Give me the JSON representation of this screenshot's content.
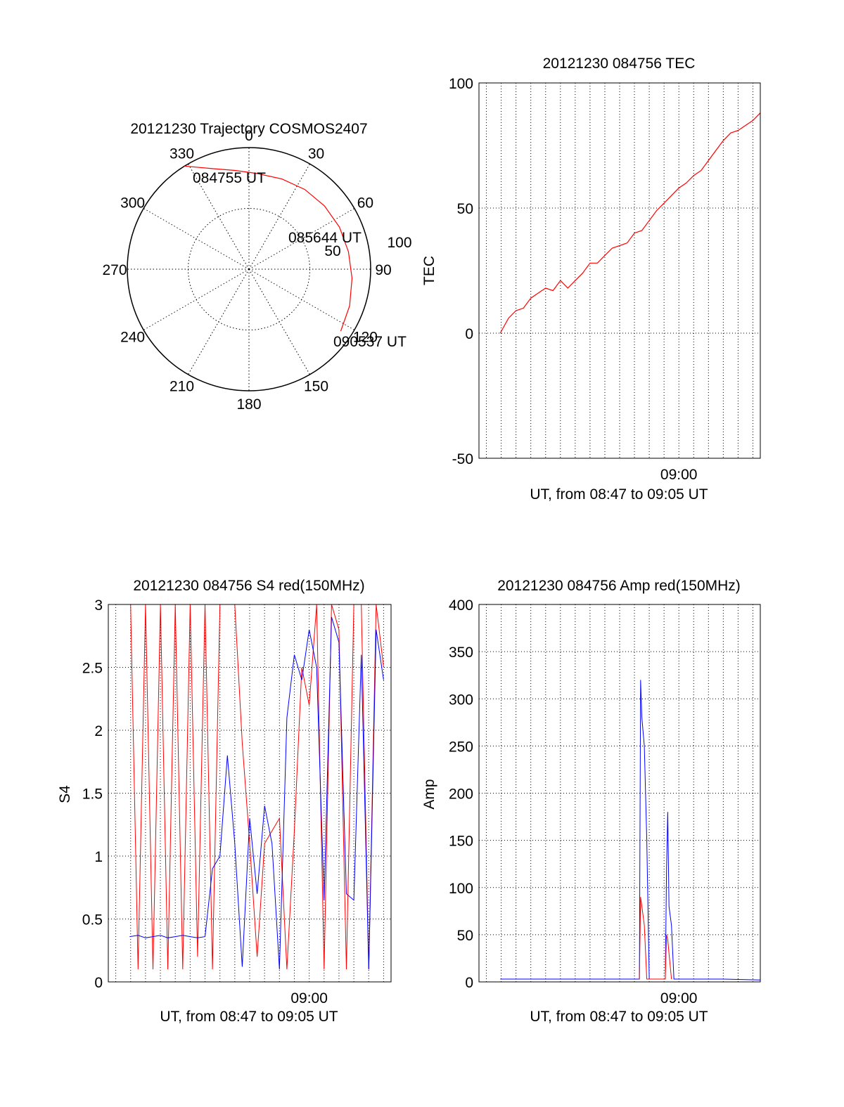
{
  "chart_data": [
    {
      "type": "polar",
      "title": "20121230 Trajectory COSMOS2407",
      "azimuth_ticks": [
        0,
        30,
        60,
        90,
        120,
        150,
        180,
        210,
        240,
        270,
        300,
        330
      ],
      "azimuth_labels": [
        "0",
        "30",
        "60",
        "90",
        "120",
        "150",
        "180",
        "210",
        "240",
        "270",
        "300",
        "330"
      ],
      "radial_ticks": [
        "50",
        "100"
      ],
      "radial_range": [
        0,
        100
      ],
      "grid": true,
      "trajectory": {
        "color": "#ff0000",
        "points": [
          {
            "az": 328,
            "r": 100
          },
          {
            "az": 340,
            "r": 88
          },
          {
            "az": 352,
            "r": 82
          },
          {
            "az": 5,
            "r": 79
          },
          {
            "az": 20,
            "r": 79
          },
          {
            "az": 35,
            "r": 80
          },
          {
            "az": 50,
            "r": 81
          },
          {
            "az": 65,
            "r": 82
          },
          {
            "az": 80,
            "r": 83
          },
          {
            "az": 95,
            "r": 85
          },
          {
            "az": 110,
            "r": 88
          },
          {
            "az": 124,
            "r": 91
          }
        ]
      },
      "annotations": [
        {
          "text": "084755 UT",
          "az": 328,
          "r": 100
        },
        {
          "text": "085644 UT",
          "az": 62,
          "r": 79
        },
        {
          "text": "090537 UT",
          "az": 124,
          "r": 91
        }
      ]
    },
    {
      "type": "line",
      "title": "20121230 084756 TEC",
      "xlabel": "UT, from 08:47 to 09:05 UT",
      "ylabel": "TEC",
      "xlim": [
        "08:46:30",
        "09:05:30"
      ],
      "ylim": [
        -50,
        100
      ],
      "yticks": [
        -50,
        0,
        50,
        100
      ],
      "xticks": [
        {
          "value": "09:00",
          "label": "09:00"
        }
      ],
      "grid": true,
      "series": [
        {
          "color": "#ff0000",
          "x": [
            "08:47:56",
            "08:48:30",
            "08:49:00",
            "08:49:30",
            "08:50:00",
            "08:50:30",
            "08:51:00",
            "08:51:30",
            "08:52:00",
            "08:52:30",
            "08:53:00",
            "08:53:30",
            "08:54:00",
            "08:54:30",
            "08:55:00",
            "08:55:30",
            "08:56:00",
            "08:56:30",
            "08:57:00",
            "08:57:30",
            "08:58:00",
            "08:58:30",
            "08:59:00",
            "08:59:30",
            "09:00:00",
            "09:00:30",
            "09:01:00",
            "09:01:30",
            "09:02:00",
            "09:02:30",
            "09:03:00",
            "09:03:30",
            "09:04:00",
            "09:04:30",
            "09:05:00",
            "09:05:30"
          ],
          "values": [
            0,
            6,
            9,
            10,
            14,
            16,
            18,
            17,
            21,
            18,
            21,
            24,
            28,
            28,
            31,
            34,
            35,
            36,
            40,
            41,
            45,
            49,
            52,
            55,
            58,
            60,
            63,
            65,
            69,
            73,
            77,
            80,
            81,
            83,
            85,
            88
          ]
        }
      ]
    },
    {
      "type": "line",
      "title": "20121230 084756 S4 red(150MHz)",
      "xlabel": "UT, from 08:47 to 09:05 UT",
      "ylabel": "S4",
      "xlim": [
        "08:46:30",
        "09:05:30"
      ],
      "ylim": [
        0,
        3
      ],
      "yticks": [
        0,
        0.5,
        1,
        1.5,
        2,
        2.5,
        3
      ],
      "ytick_labels": [
        "0",
        "0.5",
        "1",
        "1.5",
        "2",
        "2.5",
        "3"
      ],
      "xticks": [
        {
          "value": "09:00",
          "label": "09:00"
        }
      ],
      "grid": true,
      "series": [
        {
          "color": "#ff0000",
          "x": [
            "08:48:00",
            "08:48:30",
            "08:49:00",
            "08:49:30",
            "08:50:00",
            "08:50:30",
            "08:51:00",
            "08:51:30",
            "08:52:00",
            "08:52:30",
            "08:53:00",
            "08:53:30",
            "08:54:00",
            "08:54:30",
            "08:55:00",
            "08:55:30",
            "08:56:00",
            "08:56:30",
            "08:57:00",
            "08:57:30",
            "08:58:00",
            "08:58:30",
            "08:59:00",
            "08:59:30",
            "09:00:00",
            "09:00:30",
            "09:01:00",
            "09:01:30",
            "09:02:00",
            "09:02:30",
            "09:03:00",
            "09:03:30",
            "09:04:00",
            "09:04:30",
            "09:05:00"
          ],
          "values": [
            3,
            0.1,
            3,
            0.1,
            3,
            0.1,
            3,
            0.1,
            3,
            0.2,
            3,
            0.1,
            3,
            3,
            3,
            1.9,
            1.1,
            0.2,
            1.1,
            1.2,
            1.3,
            0.1,
            1.2,
            2.5,
            2.2,
            3,
            0.1,
            3,
            2.8,
            0.1,
            3,
            3,
            0.1,
            3,
            2.5
          ]
        },
        {
          "color": "#0000ff",
          "x": [
            "08:47:56",
            "08:48:30",
            "08:49:00",
            "08:49:30",
            "08:50:00",
            "08:50:30",
            "08:51:00",
            "08:51:30",
            "08:52:00",
            "08:52:30",
            "08:53:00",
            "08:53:30",
            "08:54:00",
            "08:54:30",
            "08:55:00",
            "08:55:30",
            "08:56:00",
            "08:56:30",
            "08:57:00",
            "08:57:30",
            "08:58:00",
            "08:58:30",
            "08:59:00",
            "08:59:30",
            "09:00:00",
            "09:00:30",
            "09:01:00",
            "09:01:30",
            "09:02:00",
            "09:02:30",
            "09:03:00",
            "09:03:30",
            "09:04:00",
            "09:04:30",
            "09:05:00"
          ],
          "values": [
            0.36,
            0.37,
            0.35,
            0.36,
            0.37,
            0.35,
            0.36,
            0.37,
            0.36,
            0.35,
            0.36,
            0.9,
            1.0,
            1.8,
            1.1,
            0.12,
            1.3,
            0.7,
            1.4,
            1.1,
            0.1,
            2.1,
            2.6,
            2.4,
            2.8,
            2.5,
            0.65,
            2.9,
            2.7,
            0.7,
            0.65,
            2.6,
            0.1,
            2.8,
            2.4
          ]
        }
      ]
    },
    {
      "type": "line",
      "title": "20121230 084756 Amp red(150MHz)",
      "xlabel": "UT, from 08:47 to 09:05 UT",
      "ylabel": "Amp",
      "xlim": [
        "08:46:30",
        "09:05:30"
      ],
      "ylim": [
        0,
        400
      ],
      "yticks": [
        0,
        50,
        100,
        150,
        200,
        250,
        300,
        350,
        400
      ],
      "xticks": [
        {
          "value": "09:00",
          "label": "09:00"
        }
      ],
      "grid": true,
      "series": [
        {
          "color": "#0000ff",
          "x": [
            "08:47:56",
            "08:50:00",
            "08:53:00",
            "08:56:00",
            "08:57:00",
            "08:57:20",
            "08:57:25",
            "08:57:30",
            "08:57:40",
            "08:57:50",
            "08:58:00",
            "08:58:30",
            "08:59:00",
            "08:59:05",
            "08:59:10",
            "08:59:15",
            "08:59:20",
            "08:59:30",
            "08:59:40",
            "09:00:00",
            "09:02:00",
            "09:03:00",
            "09:05:30"
          ],
          "values": [
            3,
            3,
            3,
            3,
            3,
            3,
            320,
            280,
            250,
            150,
            3,
            3,
            3,
            3,
            120,
            180,
            80,
            60,
            3,
            3,
            3,
            3,
            2
          ]
        },
        {
          "color": "#ff0000",
          "x": [
            "08:57:20",
            "08:57:25",
            "08:57:30",
            "08:57:40",
            "08:57:50",
            "08:59:05",
            "08:59:10",
            "08:59:15",
            "08:59:20",
            "08:59:30"
          ],
          "values": [
            3,
            90,
            80,
            60,
            3,
            3,
            50,
            45,
            30,
            3
          ]
        }
      ]
    }
  ]
}
